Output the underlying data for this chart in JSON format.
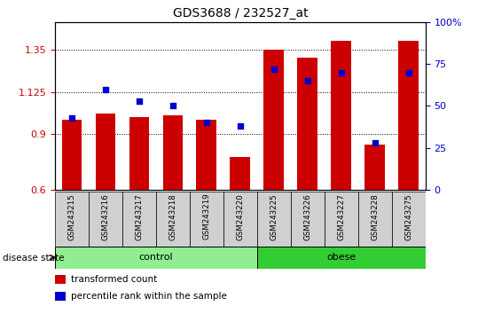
{
  "title": "GDS3688 / 232527_at",
  "categories": [
    "GSM243215",
    "GSM243216",
    "GSM243217",
    "GSM243218",
    "GSM243219",
    "GSM243220",
    "GSM243225",
    "GSM243226",
    "GSM243227",
    "GSM243228",
    "GSM243275"
  ],
  "bar_values": [
    0.975,
    1.01,
    0.99,
    1.0,
    0.975,
    0.775,
    1.35,
    1.31,
    1.4,
    0.845,
    1.4
  ],
  "dot_values_pct": [
    43,
    60,
    53,
    50,
    40,
    38,
    72,
    65,
    70,
    28,
    70
  ],
  "ylim_left": [
    0.6,
    1.5
  ],
  "ylim_right": [
    0,
    100
  ],
  "yticks_left": [
    0.6,
    0.9,
    1.125,
    1.35
  ],
  "ytick_labels_left": [
    "0.6",
    "0.9",
    "1.125",
    "1.35"
  ],
  "yticks_right": [
    0,
    25,
    50,
    75,
    100
  ],
  "ytick_labels_right": [
    "0",
    "25",
    "50",
    "75",
    "100%"
  ],
  "bar_color": "#cc0000",
  "dot_color": "#0000cc",
  "bar_baseline": 0.6,
  "groups": [
    {
      "label": "control",
      "start": 0,
      "end": 5,
      "color": "#90ee90"
    },
    {
      "label": "obese",
      "start": 6,
      "end": 10,
      "color": "#32cd32"
    }
  ],
  "disease_state_label": "disease state",
  "legend_items": [
    {
      "label": "transformed count",
      "color": "#cc0000"
    },
    {
      "label": "percentile rank within the sample",
      "color": "#0000cc"
    }
  ],
  "background_color": "#ffffff",
  "tick_area_color": "#d0d0d0"
}
